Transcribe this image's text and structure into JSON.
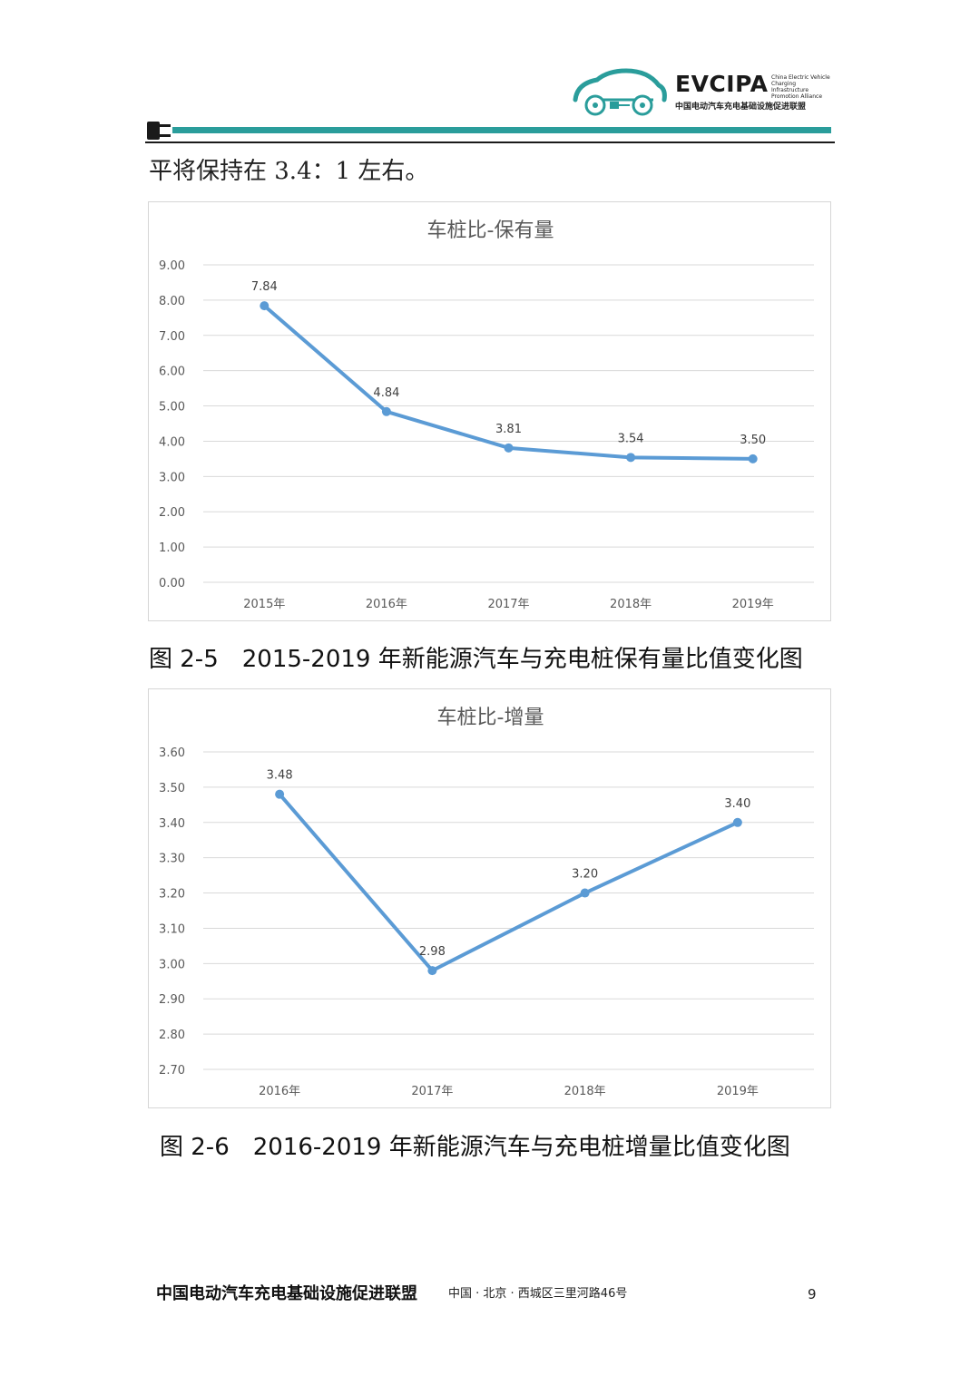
{
  "header": {
    "logo_text": "EVCIPA",
    "logo_en": "China Electric Vehicle Charging Infrastructure Promotion Alliance",
    "logo_cn": "中国电动汽车充电基础设施促进联盟",
    "accent_color": "#2a9d9b"
  },
  "body": {
    "intro_line": "平将保持在 3.4：1 左右。"
  },
  "captions": {
    "fig_2_5": "图 2-5　2015-2019 年新能源汽车与充电桩保有量比值变化图",
    "fig_2_6": "图 2-6　2016-2019 年新能源汽车与充电桩增量比值变化图"
  },
  "footer": {
    "org": "中国电动汽车充电基础设施促进联盟",
    "address": "中国 · 北京 · 西城区三里河路46号",
    "page_number": "9"
  },
  "chart_data": [
    {
      "type": "line",
      "title": "车桩比-保有量",
      "categories": [
        "2015年",
        "2016年",
        "2017年",
        "2018年",
        "2019年"
      ],
      "values": [
        7.84,
        4.84,
        3.81,
        3.54,
        3.5
      ],
      "data_labels": [
        "7.84",
        "4.84",
        "3.81",
        "3.54",
        "3.50"
      ],
      "ylim": [
        0,
        9
      ],
      "y_ticks": [
        "0.00",
        "1.00",
        "2.00",
        "3.00",
        "4.00",
        "5.00",
        "6.00",
        "7.00",
        "8.00",
        "9.00"
      ],
      "grid": true,
      "line_color": "#5b9bd5"
    },
    {
      "type": "line",
      "title": "车桩比-增量",
      "categories": [
        "2016年",
        "2017年",
        "2018年",
        "2019年"
      ],
      "values": [
        3.48,
        2.98,
        3.2,
        3.4
      ],
      "data_labels": [
        "3.48",
        "2.98",
        "3.20",
        "3.40"
      ],
      "ylim": [
        2.7,
        3.6
      ],
      "y_ticks": [
        "2.70",
        "2.80",
        "2.90",
        "3.00",
        "3.10",
        "3.20",
        "3.30",
        "3.40",
        "3.50",
        "3.60"
      ],
      "grid": true,
      "line_color": "#5b9bd5"
    }
  ]
}
